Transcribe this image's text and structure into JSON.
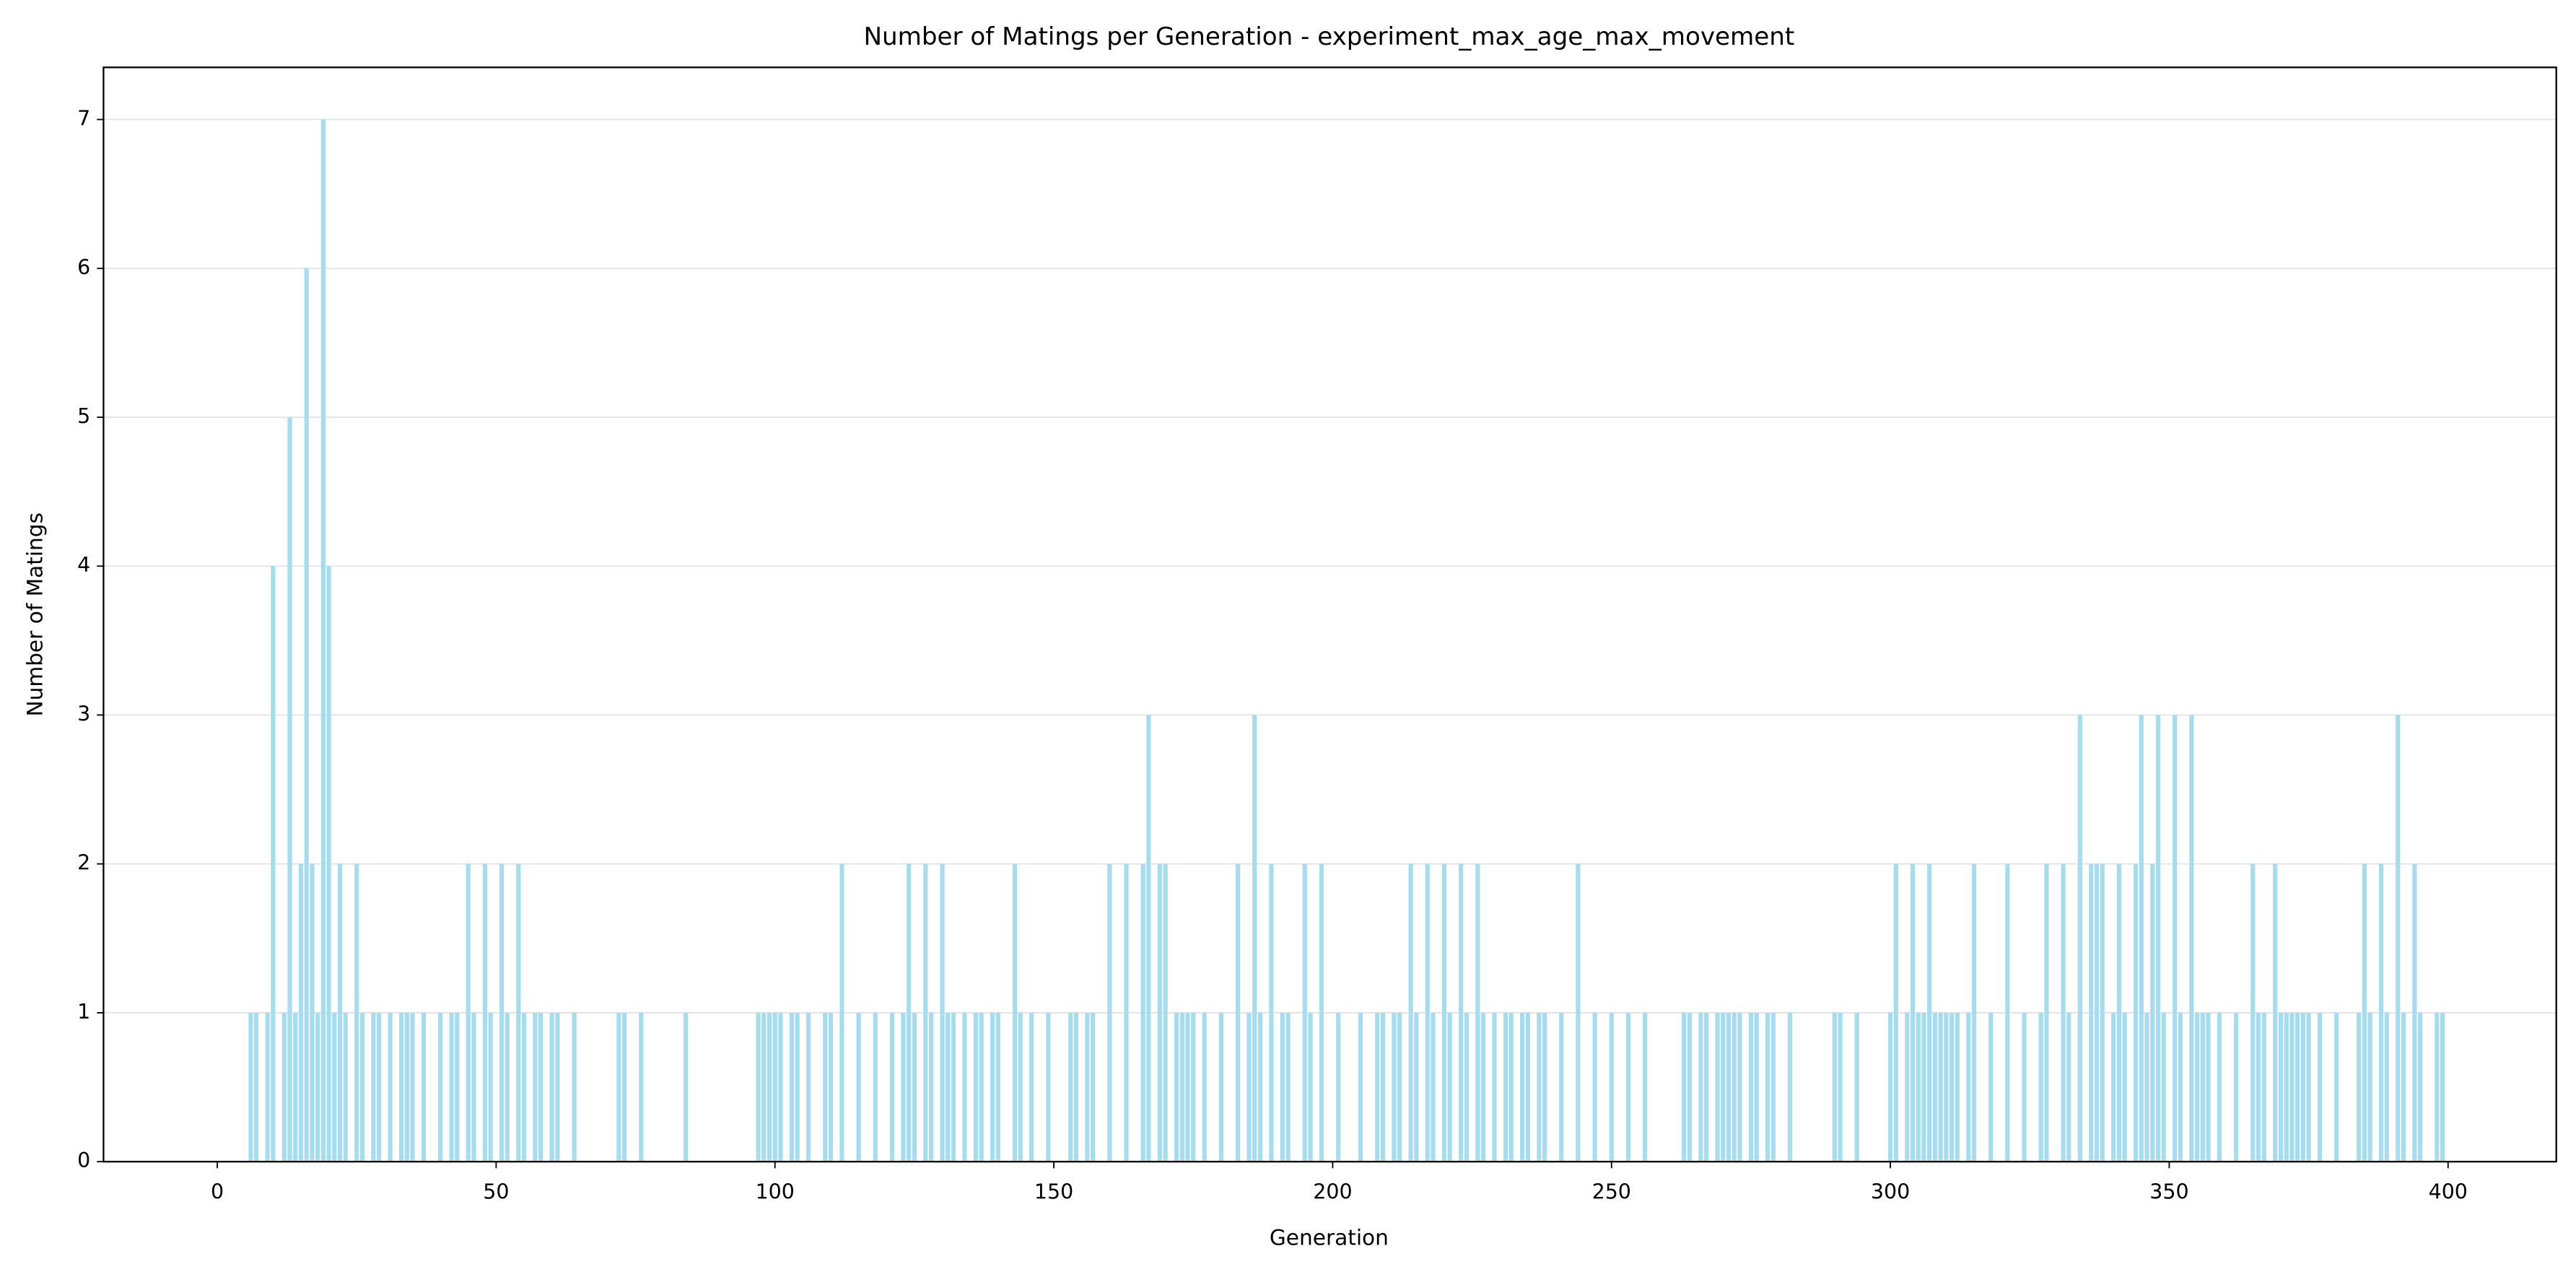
{
  "chart_data": {
    "type": "bar",
    "title": "Number of Matings per Generation - experiment_max_age_max_movement",
    "x_label": "Generation",
    "y_label": "Number of Matings",
    "x": [
      6,
      7,
      9,
      10,
      12,
      13,
      14,
      15,
      16,
      17,
      18,
      19,
      20,
      21,
      22,
      23,
      25,
      26,
      28,
      29,
      31,
      33,
      34,
      35,
      37,
      40,
      42,
      43,
      45,
      46,
      48,
      49,
      51,
      52,
      54,
      55,
      57,
      58,
      60,
      61,
      64,
      72,
      73,
      76,
      84,
      97,
      98,
      99,
      100,
      101,
      103,
      104,
      106,
      109,
      110,
      112,
      115,
      118,
      121,
      123,
      124,
      125,
      127,
      128,
      130,
      131,
      132,
      134,
      136,
      137,
      139,
      140,
      143,
      144,
      146,
      149,
      153,
      154,
      156,
      157,
      160,
      163,
      166,
      167,
      169,
      170,
      172,
      173,
      174,
      175,
      177,
      180,
      183,
      185,
      186,
      187,
      189,
      191,
      192,
      195,
      196,
      198,
      201,
      205,
      208,
      209,
      211,
      212,
      214,
      215,
      217,
      218,
      220,
      221,
      223,
      224,
      226,
      227,
      229,
      231,
      232,
      234,
      235,
      237,
      238,
      241,
      244,
      247,
      250,
      253,
      256,
      263,
      264,
      266,
      267,
      269,
      270,
      271,
      272,
      273,
      275,
      276,
      278,
      279,
      282,
      290,
      291,
      294,
      300,
      301,
      303,
      304,
      305,
      306,
      307,
      308,
      309,
      310,
      311,
      312,
      314,
      315,
      318,
      321,
      324,
      327,
      328,
      331,
      332,
      334,
      336,
      337,
      338,
      340,
      341,
      342,
      344,
      345,
      346,
      347,
      348,
      349,
      351,
      352,
      354,
      355,
      356,
      357,
      359,
      362,
      365,
      366,
      367,
      369,
      370,
      371,
      372,
      373,
      374,
      375,
      377,
      380,
      384,
      385,
      386,
      388,
      389,
      391,
      392,
      394,
      395,
      398,
      399
    ],
    "values": [
      1,
      1,
      1,
      4,
      1,
      5,
      1,
      2,
      6,
      2,
      1,
      7,
      4,
      1,
      2,
      1,
      2,
      1,
      1,
      1,
      1,
      1,
      1,
      1,
      1,
      1,
      1,
      1,
      2,
      1,
      2,
      1,
      2,
      1,
      2,
      1,
      1,
      1,
      1,
      1,
      1,
      1,
      1,
      1,
      1,
      1,
      1,
      1,
      1,
      1,
      1,
      1,
      1,
      1,
      1,
      2,
      1,
      1,
      1,
      1,
      2,
      1,
      2,
      1,
      2,
      1,
      1,
      1,
      1,
      1,
      1,
      1,
      2,
      1,
      1,
      1,
      1,
      1,
      1,
      1,
      2,
      2,
      2,
      3,
      2,
      2,
      1,
      1,
      1,
      1,
      1,
      1,
      2,
      1,
      3,
      1,
      2,
      1,
      1,
      2,
      1,
      2,
      1,
      1,
      1,
      1,
      1,
      1,
      2,
      1,
      2,
      1,
      2,
      1,
      2,
      1,
      2,
      1,
      1,
      1,
      1,
      1,
      1,
      1,
      1,
      1,
      2,
      1,
      1,
      1,
      1,
      1,
      1,
      1,
      1,
      1,
      1,
      1,
      1,
      1,
      1,
      1,
      1,
      1,
      1,
      1,
      1,
      1,
      1,
      2,
      1,
      2,
      1,
      1,
      2,
      1,
      1,
      1,
      1,
      1,
      1,
      2,
      1,
      2,
      1,
      1,
      2,
      2,
      1,
      3,
      2,
      2,
      2,
      1,
      2,
      1,
      2,
      3,
      1,
      2,
      3,
      1,
      3,
      1,
      3,
      1,
      1,
      1,
      1,
      1,
      2,
      1,
      1,
      2,
      1,
      1,
      1,
      1,
      1,
      1,
      1,
      1,
      1,
      2,
      1,
      2,
      1,
      3,
      1,
      2,
      1,
      1,
      1
    ],
    "color": "#a6dcf0",
    "xlim": [
      -20.4,
      419.4
    ],
    "xticks": [
      0,
      50,
      100,
      150,
      200,
      250,
      300,
      350,
      400
    ],
    "ylim": [
      0,
      7.35
    ],
    "yticks": [
      0,
      1,
      2,
      3,
      4,
      5,
      6,
      7
    ],
    "grid": true
  }
}
